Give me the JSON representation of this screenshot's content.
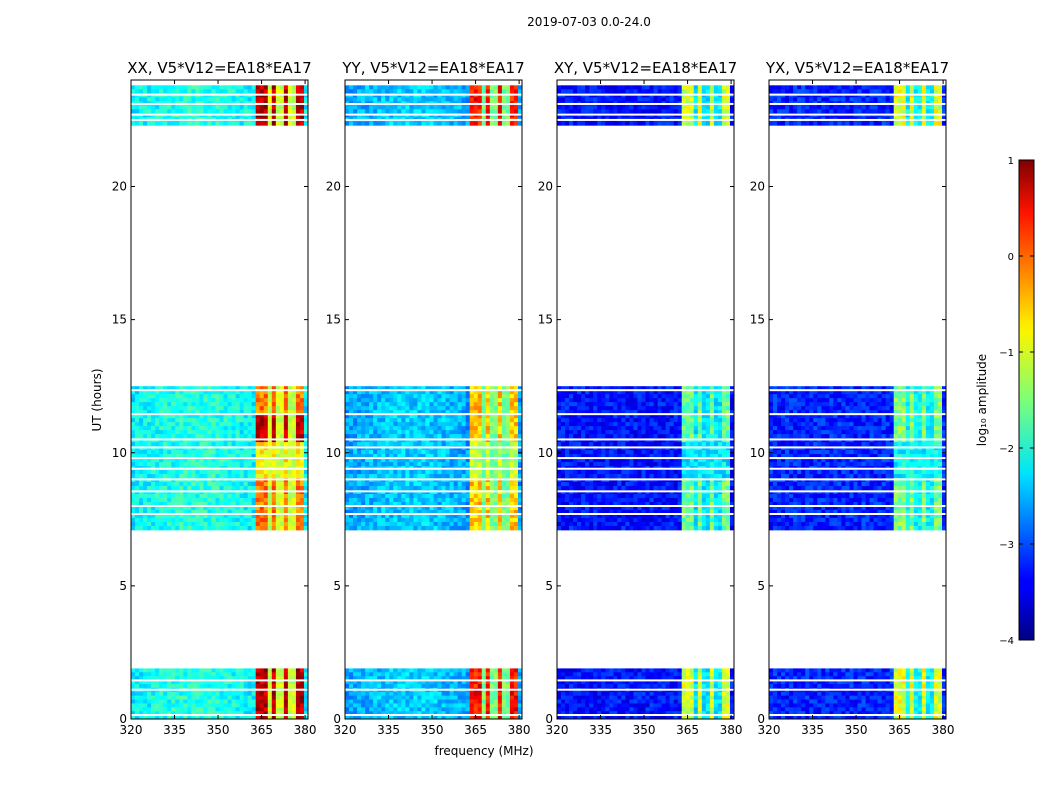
{
  "chart_data": {
    "type": "heatmap",
    "suptitle": "2019-07-03 0.0-24.0",
    "xlabel": "frequency (MHz)",
    "ylabel": "UT (hours)",
    "xlim": [
      320,
      381
    ],
    "ylim": [
      0,
      24
    ],
    "x_ticks": [
      320,
      335,
      350,
      365,
      380
    ],
    "y_ticks": [
      0,
      5,
      10,
      15,
      20
    ],
    "panels": [
      {
        "title": "XX, V5*V12=EA18*EA17",
        "polarization": "XX",
        "baseline_level": -2.2,
        "cross_pol": false
      },
      {
        "title": "YY, V5*V12=EA18*EA17",
        "polarization": "YY",
        "baseline_level": -2.6,
        "cross_pol": false
      },
      {
        "title": "XY, V5*V12=EA18*EA17",
        "polarization": "XY",
        "baseline_level": -3.3,
        "cross_pol": true
      },
      {
        "title": "YX, V5*V12=EA18*EA17",
        "polarization": "YX",
        "baseline_level": -3.2,
        "cross_pol": true
      }
    ],
    "data_time_ranges_hours": [
      [
        0,
        1.9
      ],
      [
        7.1,
        12.5
      ],
      [
        22.3,
        23.8
      ]
    ],
    "flag_lines_hours": [
      0.15,
      1.1,
      1.45,
      7.7,
      8.0,
      8.55,
      9.0,
      9.4,
      9.8,
      10.2,
      10.5,
      11.45,
      12.35,
      22.5,
      22.7,
      23.1,
      23.45
    ],
    "signal_band_mhz": [
      363,
      379
    ],
    "signal_gaps_mhz": [
      367.5,
      371.5,
      375.5
    ],
    "colorbar": {
      "label": "log₁₀ amplitude",
      "range": [
        -4,
        1
      ],
      "ticks": [
        1,
        0,
        -1,
        -2,
        -3,
        -4
      ],
      "tick_labels": [
        "1",
        "0",
        "−1",
        "−2",
        "−3",
        "−4"
      ],
      "colormap": "jet"
    }
  }
}
